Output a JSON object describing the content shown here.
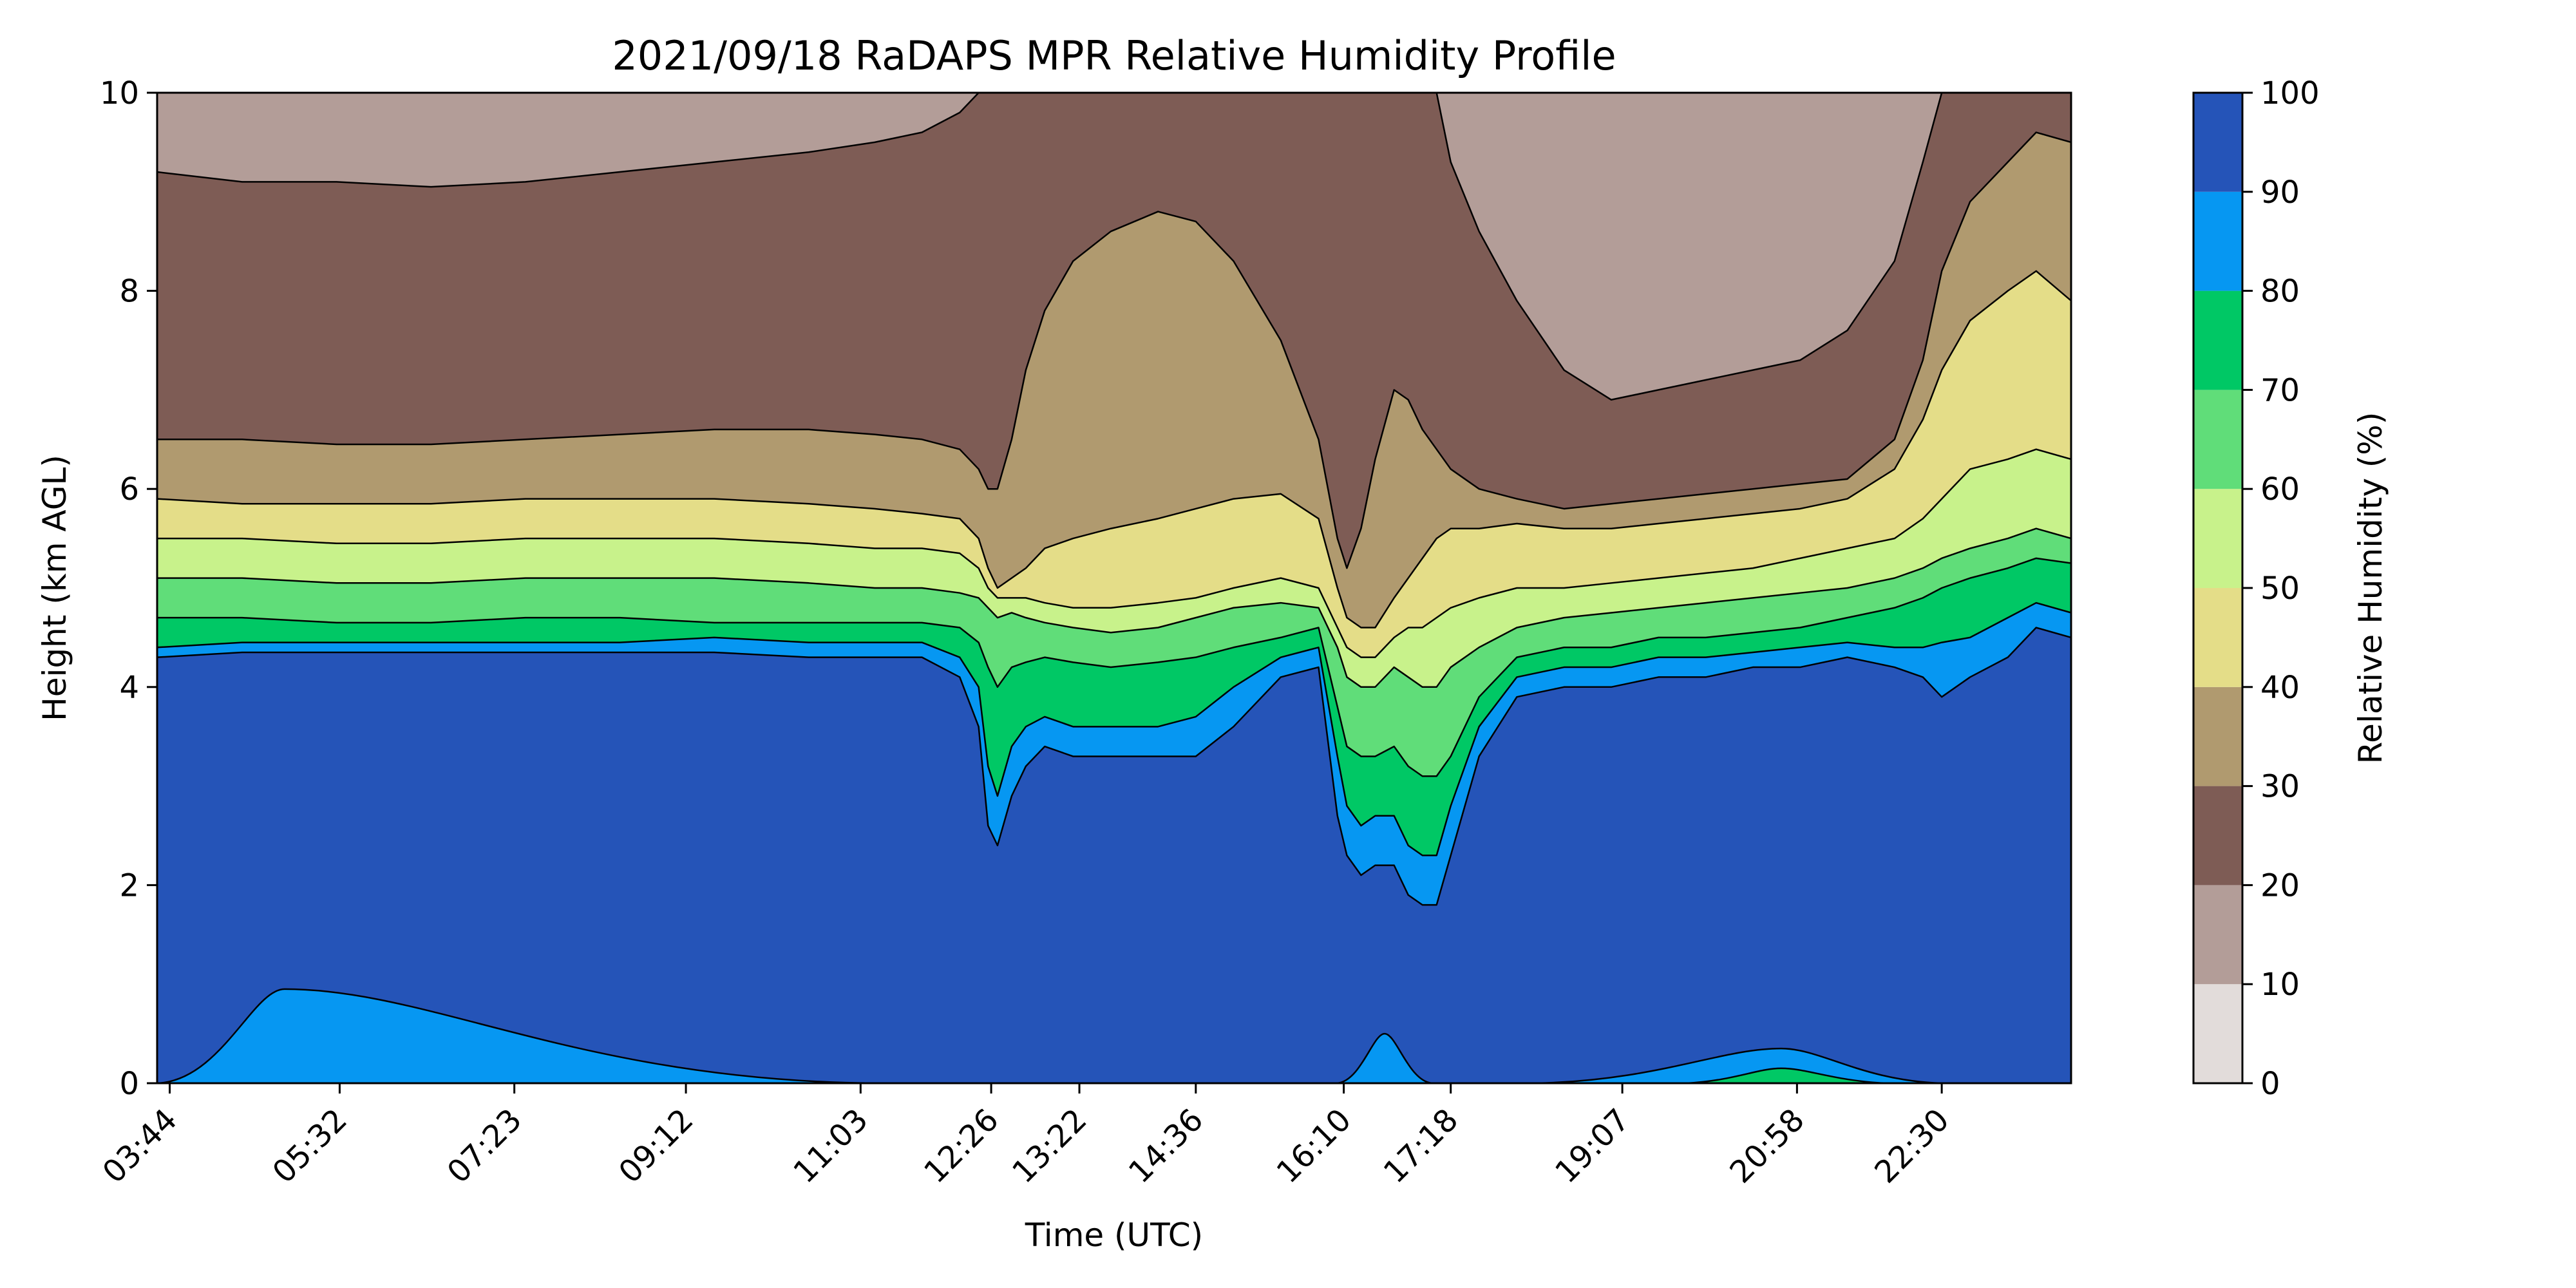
{
  "chart_data": {
    "type": "heatmap",
    "subtype": "filled-contour",
    "title": "2021/09/18 RaDAPS MPR Relative Humidity Profile",
    "xlabel": "Time (UTC)",
    "ylabel": "Height (km AGL)",
    "colorbar_label": "Relative Humidity (%)",
    "x_unit": "hours UTC",
    "x_range": [
      3.6,
      23.87
    ],
    "x_ticks": [
      {
        "label": "03:44",
        "hours": 3.733
      },
      {
        "label": "05:32",
        "hours": 5.533
      },
      {
        "label": "07:23",
        "hours": 7.383
      },
      {
        "label": "09:12",
        "hours": 9.2
      },
      {
        "label": "11:03",
        "hours": 11.05
      },
      {
        "label": "12:26",
        "hours": 12.433
      },
      {
        "label": "13:22",
        "hours": 13.367
      },
      {
        "label": "14:36",
        "hours": 14.6
      },
      {
        "label": "16:10",
        "hours": 16.167
      },
      {
        "label": "17:18",
        "hours": 17.3
      },
      {
        "label": "19:07",
        "hours": 19.117
      },
      {
        "label": "20:58",
        "hours": 20.967
      },
      {
        "label": "22:30",
        "hours": 22.5
      }
    ],
    "y_range": [
      0,
      10
    ],
    "y_ticks": [
      "0",
      "2",
      "4",
      "6",
      "8",
      "10"
    ],
    "colorbar": {
      "levels": [
        0,
        10,
        20,
        30,
        40,
        50,
        60,
        70,
        80,
        90,
        100
      ],
      "tick_labels": [
        "0",
        "10",
        "20",
        "30",
        "40",
        "50",
        "60",
        "70",
        "80",
        "90",
        "100"
      ],
      "colors": [
        "#e2dcda",
        "#b39d98",
        "#7e5c55",
        "#b09a6f",
        "#e4dd88",
        "#c8f28b",
        "#60dd79",
        "#00c865",
        "#0697f2",
        "#2554b8"
      ]
    },
    "boundary_heights_km": {
      "times": [
        3.6,
        4.5,
        5.5,
        6.5,
        7.5,
        8.5,
        9.5,
        10.5,
        11.2,
        11.7,
        12.1,
        12.3,
        12.4,
        12.5,
        12.65,
        12.8,
        13.0,
        13.3,
        13.7,
        14.2,
        14.6,
        15.0,
        15.5,
        15.9,
        16.1,
        16.2,
        16.35,
        16.5,
        16.7,
        16.85,
        17.0,
        17.15,
        17.3,
        17.6,
        18.0,
        18.5,
        19.0,
        19.5,
        20.0,
        20.5,
        21.0,
        21.5,
        22.0,
        22.3,
        22.5,
        22.8,
        23.2,
        23.5,
        23.87
      ],
      "rh90": [
        4.3,
        4.35,
        4.35,
        4.35,
        4.35,
        4.35,
        4.35,
        4.3,
        4.3,
        4.3,
        4.1,
        3.6,
        2.6,
        2.4,
        2.9,
        3.2,
        3.4,
        3.3,
        3.3,
        3.3,
        3.3,
        3.6,
        4.1,
        4.2,
        2.7,
        2.3,
        2.1,
        2.2,
        2.2,
        1.9,
        1.8,
        1.8,
        2.3,
        3.3,
        3.9,
        4.0,
        4.0,
        4.1,
        4.1,
        4.2,
        4.2,
        4.3,
        4.2,
        4.1,
        3.9,
        4.1,
        4.3,
        4.6,
        4.5
      ],
      "rh80": [
        4.4,
        4.45,
        4.45,
        4.45,
        4.45,
        4.45,
        4.5,
        4.45,
        4.45,
        4.45,
        4.3,
        4.0,
        3.2,
        2.9,
        3.4,
        3.6,
        3.7,
        3.6,
        3.6,
        3.6,
        3.7,
        4.0,
        4.3,
        4.4,
        3.3,
        2.8,
        2.6,
        2.7,
        2.7,
        2.4,
        2.3,
        2.3,
        2.8,
        3.6,
        4.1,
        4.2,
        4.2,
        4.3,
        4.3,
        4.35,
        4.4,
        4.45,
        4.4,
        4.4,
        4.45,
        4.5,
        4.7,
        4.85,
        4.75
      ],
      "rh70": [
        4.7,
        4.7,
        4.65,
        4.65,
        4.7,
        4.7,
        4.65,
        4.65,
        4.65,
        4.65,
        4.6,
        4.45,
        4.2,
        4.0,
        4.2,
        4.25,
        4.3,
        4.25,
        4.2,
        4.25,
        4.3,
        4.4,
        4.5,
        4.6,
        3.8,
        3.4,
        3.3,
        3.3,
        3.4,
        3.2,
        3.1,
        3.1,
        3.3,
        3.9,
        4.3,
        4.4,
        4.4,
        4.5,
        4.5,
        4.55,
        4.6,
        4.7,
        4.8,
        4.9,
        5.0,
        5.1,
        5.2,
        5.3,
        5.25
      ],
      "rh60": [
        5.1,
        5.1,
        5.05,
        5.05,
        5.1,
        5.1,
        5.1,
        5.05,
        5.0,
        5.0,
        4.95,
        4.9,
        4.8,
        4.7,
        4.75,
        4.7,
        4.65,
        4.6,
        4.55,
        4.6,
        4.7,
        4.8,
        4.85,
        4.8,
        4.4,
        4.1,
        4.0,
        4.0,
        4.2,
        4.1,
        4.0,
        4.0,
        4.2,
        4.4,
        4.6,
        4.7,
        4.75,
        4.8,
        4.85,
        4.9,
        4.95,
        5.0,
        5.1,
        5.2,
        5.3,
        5.4,
        5.5,
        5.6,
        5.5
      ],
      "rh50": [
        5.5,
        5.5,
        5.45,
        5.45,
        5.5,
        5.5,
        5.5,
        5.45,
        5.4,
        5.4,
        5.35,
        5.2,
        5.0,
        4.9,
        4.9,
        4.9,
        4.85,
        4.8,
        4.8,
        4.85,
        4.9,
        5.0,
        5.1,
        5.0,
        4.6,
        4.4,
        4.3,
        4.3,
        4.5,
        4.6,
        4.6,
        4.7,
        4.8,
        4.9,
        5.0,
        5.0,
        5.05,
        5.1,
        5.15,
        5.2,
        5.3,
        5.4,
        5.5,
        5.7,
        5.9,
        6.2,
        6.3,
        6.4,
        6.3
      ],
      "rh40": [
        5.9,
        5.85,
        5.85,
        5.85,
        5.9,
        5.9,
        5.9,
        5.85,
        5.8,
        5.75,
        5.7,
        5.5,
        5.2,
        5.0,
        5.1,
        5.2,
        5.4,
        5.5,
        5.6,
        5.7,
        5.8,
        5.9,
        5.95,
        5.7,
        5.0,
        4.7,
        4.6,
        4.6,
        4.9,
        5.1,
        5.3,
        5.5,
        5.6,
        5.6,
        5.65,
        5.6,
        5.6,
        5.65,
        5.7,
        5.75,
        5.8,
        5.9,
        6.2,
        6.7,
        7.2,
        7.7,
        8.0,
        8.2,
        7.9
      ],
      "rh30": [
        6.5,
        6.5,
        6.45,
        6.45,
        6.5,
        6.55,
        6.6,
        6.6,
        6.55,
        6.5,
        6.4,
        6.2,
        6.0,
        6.0,
        6.5,
        7.2,
        7.8,
        8.3,
        8.6,
        8.8,
        8.7,
        8.3,
        7.5,
        6.5,
        5.5,
        5.2,
        5.6,
        6.3,
        7.0,
        6.9,
        6.6,
        6.4,
        6.2,
        6.0,
        5.9,
        5.8,
        5.85,
        5.9,
        5.95,
        6.0,
        6.05,
        6.1,
        6.5,
        7.3,
        8.2,
        8.9,
        9.3,
        9.6,
        9.5
      ],
      "rh20": [
        9.2,
        9.1,
        9.1,
        9.05,
        9.1,
        9.2,
        9.3,
        9.4,
        9.5,
        9.6,
        9.8,
        10.0,
        10.0,
        10.0,
        10.0,
        10.0,
        10.0,
        10.0,
        10.0,
        10.0,
        10.0,
        10.0,
        10.0,
        10.0,
        10.0,
        10.0,
        10.0,
        10.0,
        10.0,
        10.0,
        10.0,
        10.0,
        9.3,
        8.6,
        7.9,
        7.2,
        6.9,
        7.0,
        7.1,
        7.2,
        7.3,
        7.6,
        8.3,
        9.3,
        10.0,
        10.0,
        10.0,
        10.0,
        10.0
      ]
    },
    "near_surface_lobes": [
      {
        "level": "80-90",
        "start": 3.6,
        "end": 11.2,
        "peak_time": 4.95,
        "peak_km": 0.95
      },
      {
        "level": "80-90",
        "start": 16.1,
        "end": 17.1,
        "peak_time": 16.6,
        "peak_km": 0.5
      },
      {
        "level": "80-90",
        "start": 18.2,
        "end": 22.5,
        "peak_time": 20.8,
        "peak_km": 0.35
      },
      {
        "level": "70-80",
        "start": 19.8,
        "end": 21.9,
        "peak_time": 20.8,
        "peak_km": 0.15
      }
    ]
  }
}
